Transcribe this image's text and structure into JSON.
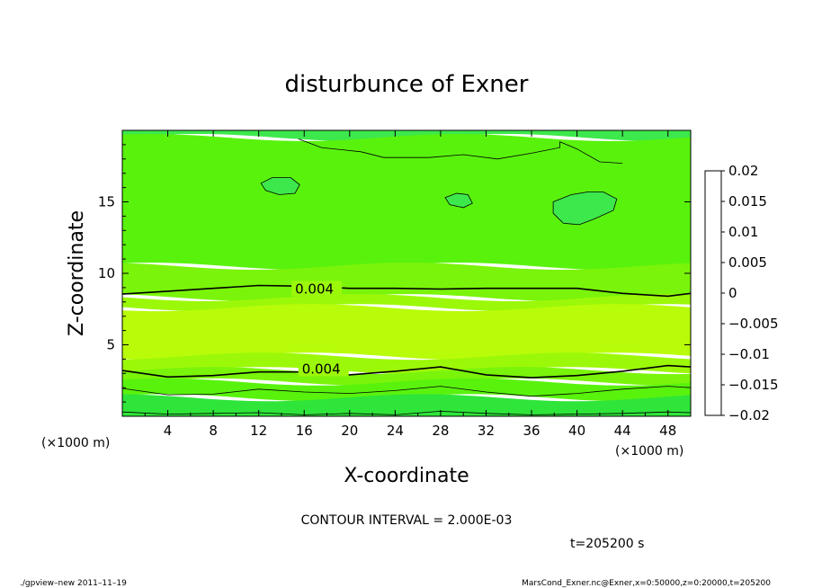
{
  "chart_data": {
    "type": "heatmap",
    "title": "disturbunce of Exner",
    "xlabel": "X-coordinate",
    "ylabel": "Z-coordinate",
    "x_unit": "(×1000 m)",
    "y_unit": "(×1000 m)",
    "xlim": [
      0,
      50
    ],
    "ylim": [
      0,
      20
    ],
    "x_ticks": [
      "4",
      "8",
      "12",
      "16",
      "20",
      "24",
      "28",
      "32",
      "36",
      "40",
      "44",
      "48"
    ],
    "y_ticks": [
      "5",
      "10",
      "15"
    ],
    "contour_interval": "CONTOUR INTERVAL = 2.000E-03",
    "time_label": "t=205200 s",
    "contour_labels": [
      {
        "text": "0.004",
        "x": 15.2,
        "z": 8.9
      },
      {
        "text": "0.004",
        "x": 15.8,
        "z": 3.3
      }
    ],
    "contour_lines": [
      {
        "level": 0.004,
        "x": [
          0,
          4,
          8,
          12,
          16,
          20,
          24,
          28,
          32,
          36,
          40,
          44,
          48,
          50
        ],
        "z": [
          8.55,
          8.75,
          8.95,
          9.15,
          9.1,
          8.95,
          8.95,
          8.9,
          8.95,
          8.95,
          8.95,
          8.6,
          8.4,
          8.6
        ]
      },
      {
        "level": 0.004,
        "x": [
          0,
          4,
          8,
          12,
          16,
          20,
          24,
          28,
          32,
          36,
          40,
          44,
          48,
          50
        ],
        "z": [
          3.2,
          2.75,
          2.85,
          3.1,
          3.1,
          2.9,
          3.15,
          3.45,
          2.9,
          2.7,
          2.85,
          3.15,
          3.55,
          3.45
        ]
      },
      {
        "level": 0.002,
        "x": [
          0,
          4,
          8,
          12,
          16,
          20,
          24,
          28,
          32,
          36,
          40,
          44,
          48,
          50
        ],
        "z": [
          1.95,
          1.5,
          1.55,
          1.9,
          1.7,
          1.6,
          1.8,
          2.1,
          1.7,
          1.4,
          1.6,
          1.9,
          2.1,
          2.0
        ]
      },
      {
        "level": 0.0,
        "x": [
          0,
          4,
          8,
          12,
          16,
          20,
          24,
          28,
          32,
          36,
          40,
          44,
          48,
          50
        ],
        "z": [
          0.3,
          0.15,
          0.2,
          0.25,
          0.1,
          0.2,
          0.1,
          0.35,
          0.2,
          0.1,
          0.15,
          0.2,
          0.3,
          0.25
        ]
      },
      {
        "level": 0.0,
        "x": [
          15.5,
          17.5,
          21,
          23,
          27,
          30,
          33,
          36,
          38.5,
          38.5,
          40,
          42,
          44
        ],
        "z": [
          19.4,
          18.8,
          18.5,
          18.1,
          18.1,
          18.3,
          18.0,
          18.4,
          18.8,
          19.2,
          18.7,
          17.8,
          17.7
        ]
      }
    ],
    "blobs": [
      {
        "x": [
          12.2,
          13.2,
          14.8,
          15.6,
          15.2,
          13.8,
          12.6
        ],
        "z": [
          16.3,
          16.7,
          16.7,
          16.2,
          15.6,
          15.5,
          15.8
        ]
      },
      {
        "x": [
          28.4,
          29.4,
          30.4,
          30.8,
          30.0,
          28.8
        ],
        "z": [
          15.3,
          15.6,
          15.5,
          14.9,
          14.6,
          14.8
        ]
      },
      {
        "x": [
          37.9,
          39.5,
          41.0,
          42.3,
          43.5,
          43.2,
          41.5,
          40.2,
          38.8,
          37.9
        ],
        "z": [
          15.0,
          15.5,
          15.7,
          15.7,
          15.2,
          14.4,
          13.8,
          13.4,
          13.5,
          14.2
        ]
      }
    ],
    "bands": [
      {
        "color": "#3de84c",
        "z_lo": 19.5,
        "z_hi": 20
      },
      {
        "color": "#59f20d",
        "z_lo": 10.5,
        "z_hi": 19.5
      },
      {
        "color": "#7af40a",
        "z_lo": 8.3,
        "z_hi": 10.5
      },
      {
        "color": "#9cf809",
        "z_lo": 7.6,
        "z_hi": 8.3
      },
      {
        "color": "#b8fc09",
        "z_lo": 4.2,
        "z_hi": 7.6
      },
      {
        "color": "#9cf809",
        "z_lo": 3.2,
        "z_hi": 4.2
      },
      {
        "color": "#7af40a",
        "z_lo": 2.4,
        "z_hi": 3.2
      },
      {
        "color": "#59f20d",
        "z_lo": 1.3,
        "z_hi": 2.4
      },
      {
        "color": "#2fe53a",
        "z_lo": 0,
        "z_hi": 1.3
      }
    ],
    "colorbar": {
      "levels": [
        -0.02,
        -0.0175,
        -0.015,
        -0.0125,
        -0.01,
        -0.0075,
        -0.005,
        -0.0025,
        0,
        0.0025,
        0.005,
        0.0075,
        0.01,
        0.0125,
        0.015,
        0.0175,
        0.02
      ],
      "colors": [
        "#7a2fa8",
        "#2b1fa6",
        "#1a2fd0",
        "#1f5cf2",
        "#1e8cf5",
        "#22c0f0",
        "#1fe2cf",
        "#1fe38a",
        "#2fe83c",
        "#5df00d",
        "#b8fc09",
        "#e3d108",
        "#f5a00a",
        "#f26414",
        "#e52c20",
        "#f06a6a"
      ],
      "labels": [
        "0.02",
        "0.015",
        "0.01",
        "0.005",
        "0",
        "−0.005",
        "−0.01",
        "−0.015",
        "−0.02"
      ]
    }
  },
  "footer": {
    "left": "./gpview–new   2011–11–19",
    "right": "MarsCond_Exner.nc@Exner,x=0:50000,z=0:20000,t=205200"
  }
}
